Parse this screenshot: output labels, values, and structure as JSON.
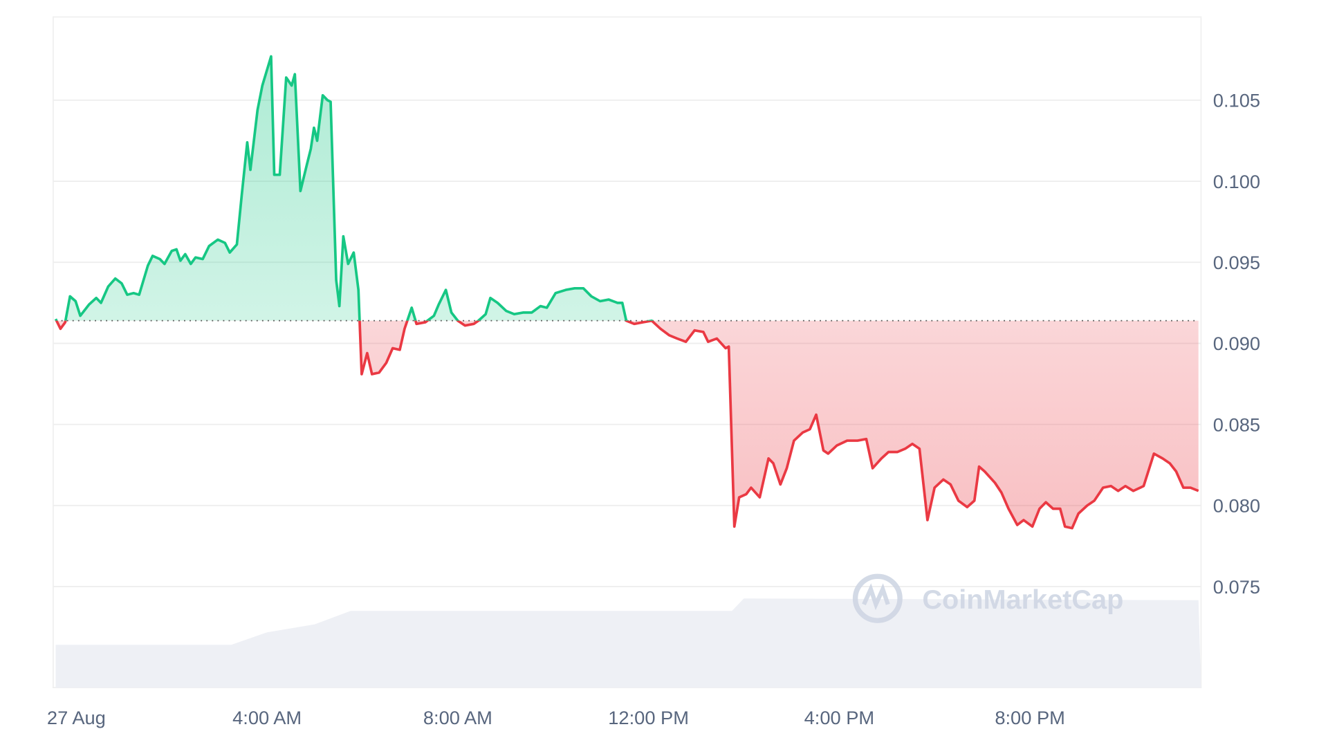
{
  "chart_data": {
    "type": "area",
    "title": "",
    "xlabel": "",
    "ylabel": "",
    "y_axis_position": "right",
    "ylim": [
      0.0687,
      0.1101
    ],
    "y_ticks": [
      "0.105",
      "0.100",
      "0.095",
      "0.090",
      "0.085",
      "0.080",
      "0.075"
    ],
    "y_tick_values": [
      0.105,
      0.1,
      0.095,
      0.09,
      0.085,
      0.08,
      0.075
    ],
    "x_ticks": [
      "27 Aug",
      "4:00 AM",
      "8:00 AM",
      "12:00 PM",
      "4:00 PM",
      "8:00 PM"
    ],
    "x_tick_times": [
      "27 Aug 00:00",
      "27 Aug 04:00",
      "27 Aug 08:00",
      "27 Aug 12:00",
      "27 Aug 16:00",
      "27 Aug 20:00"
    ],
    "grid": true,
    "reference_price": 0.0914,
    "colors": {
      "up": "#16c784",
      "down": "#ea3943",
      "volume": "#eef0f5",
      "grid": "#eeeeee"
    },
    "watermark": "CoinMarketCap",
    "series": [
      {
        "points": [
          [
            "26 Aug 23:34",
            0.0915
          ],
          [
            "26 Aug 23:40",
            0.0909
          ],
          [
            "26 Aug 23:46",
            0.0913
          ],
          [
            "26 Aug 23:52",
            0.0929
          ],
          [
            "26 Aug 23:59",
            0.0926
          ],
          [
            "27 Aug 00:05",
            0.0917
          ],
          [
            "27 Aug 00:16",
            0.0924
          ],
          [
            "27 Aug 00:25",
            0.0928
          ],
          [
            "27 Aug 00:31",
            0.0925
          ],
          [
            "27 Aug 00:40",
            0.0935
          ],
          [
            "27 Aug 00:49",
            0.094
          ],
          [
            "27 Aug 00:57",
            0.0937
          ],
          [
            "27 Aug 01:04",
            0.093
          ],
          [
            "27 Aug 01:12",
            0.0931
          ],
          [
            "27 Aug 01:19",
            0.093
          ],
          [
            "27 Aug 01:30",
            0.0948
          ],
          [
            "27 Aug 01:36",
            0.0954
          ],
          [
            "27 Aug 01:45",
            0.0952
          ],
          [
            "27 Aug 01:51",
            0.0949
          ],
          [
            "27 Aug 02:00",
            0.0957
          ],
          [
            "27 Aug 02:06",
            0.0958
          ],
          [
            "27 Aug 02:11",
            0.0951
          ],
          [
            "27 Aug 02:17",
            0.0955
          ],
          [
            "27 Aug 02:24",
            0.0949
          ],
          [
            "27 Aug 02:30",
            0.0953
          ],
          [
            "27 Aug 02:39",
            0.0952
          ],
          [
            "27 Aug 02:47",
            0.096
          ],
          [
            "27 Aug 02:58",
            0.0964
          ],
          [
            "27 Aug 03:07",
            0.0962
          ],
          [
            "27 Aug 03:13",
            0.0956
          ],
          [
            "27 Aug 03:22",
            0.0961
          ],
          [
            "27 Aug 03:28",
            0.0991
          ],
          [
            "27 Aug 03:35",
            0.1024
          ],
          [
            "27 Aug 03:39",
            0.1007
          ],
          [
            "27 Aug 03:48",
            0.1044
          ],
          [
            "27 Aug 03:54",
            0.1059
          ],
          [
            "27 Aug 04:05",
            0.1077
          ],
          [
            "27 Aug 04:09",
            0.1004
          ],
          [
            "27 Aug 04:16",
            0.1004
          ],
          [
            "27 Aug 04:24",
            0.1064
          ],
          [
            "27 Aug 04:31",
            0.1059
          ],
          [
            "27 Aug 04:35",
            0.1066
          ],
          [
            "27 Aug 04:42",
            0.0994
          ],
          [
            "27 Aug 04:50",
            0.101
          ],
          [
            "27 Aug 04:55",
            0.102
          ],
          [
            "27 Aug 04:59",
            0.1033
          ],
          [
            "27 Aug 05:03",
            0.1025
          ],
          [
            "27 Aug 05:10",
            0.1053
          ],
          [
            "27 Aug 05:16",
            0.105
          ],
          [
            "27 Aug 05:20",
            0.1049
          ],
          [
            "27 Aug 05:27",
            0.0939
          ],
          [
            "27 Aug 05:31",
            0.0923
          ],
          [
            "27 Aug 05:36",
            0.0966
          ],
          [
            "27 Aug 05:42",
            0.0949
          ],
          [
            "27 Aug 05:49",
            0.0956
          ],
          [
            "27 Aug 05:55",
            0.0933
          ],
          [
            "27 Aug 05:59",
            0.0881
          ],
          [
            "27 Aug 06:06",
            0.0894
          ],
          [
            "27 Aug 06:12",
            0.0881
          ],
          [
            "27 Aug 06:21",
            0.0882
          ],
          [
            "27 Aug 06:30",
            0.0888
          ],
          [
            "27 Aug 06:38",
            0.0897
          ],
          [
            "27 Aug 06:47",
            0.0896
          ],
          [
            "27 Aug 06:53",
            0.0909
          ],
          [
            "27 Aug 07:02",
            0.0922
          ],
          [
            "27 Aug 07:08",
            0.0912
          ],
          [
            "27 Aug 07:19",
            0.0913
          ],
          [
            "27 Aug 07:30",
            0.0917
          ],
          [
            "27 Aug 07:36",
            0.0924
          ],
          [
            "27 Aug 07:45",
            0.0933
          ],
          [
            "27 Aug 07:52",
            0.0919
          ],
          [
            "27 Aug 08:00",
            0.0914
          ],
          [
            "27 Aug 08:09",
            0.0911
          ],
          [
            "27 Aug 08:20",
            0.0912
          ],
          [
            "27 Aug 08:26",
            0.0914
          ],
          [
            "27 Aug 08:35",
            0.0918
          ],
          [
            "27 Aug 08:41",
            0.0928
          ],
          [
            "27 Aug 08:50",
            0.0925
          ],
          [
            "27 Aug 09:01",
            0.092
          ],
          [
            "27 Aug 09:11",
            0.0918
          ],
          [
            "27 Aug 09:22",
            0.0919
          ],
          [
            "27 Aug 09:33",
            0.0919
          ],
          [
            "27 Aug 09:44",
            0.0923
          ],
          [
            "27 Aug 09:52",
            0.0922
          ],
          [
            "27 Aug 10:03",
            0.0931
          ],
          [
            "27 Aug 10:16",
            0.0933
          ],
          [
            "27 Aug 10:27",
            0.0934
          ],
          [
            "27 Aug 10:38",
            0.0934
          ],
          [
            "27 Aug 10:48",
            0.0929
          ],
          [
            "27 Aug 10:59",
            0.0926
          ],
          [
            "27 Aug 11:10",
            0.0927
          ],
          [
            "27 Aug 11:21",
            0.0925
          ],
          [
            "27 Aug 11:27",
            0.0925
          ],
          [
            "27 Aug 11:32",
            0.0914
          ],
          [
            "27 Aug 11:42",
            0.0912
          ],
          [
            "27 Aug 11:53",
            0.0913
          ],
          [
            "27 Aug 12:04",
            0.0914
          ],
          [
            "27 Aug 12:15",
            0.0909
          ],
          [
            "27 Aug 12:26",
            0.0905
          ],
          [
            "27 Aug 12:36",
            0.0903
          ],
          [
            "27 Aug 12:47",
            0.0901
          ],
          [
            "27 Aug 12:58",
            0.0908
          ],
          [
            "27 Aug 13:09",
            0.0907
          ],
          [
            "27 Aug 13:15",
            0.0901
          ],
          [
            "27 Aug 13:26",
            0.0903
          ],
          [
            "27 Aug 13:37",
            0.0897
          ],
          [
            "27 Aug 13:41",
            0.0898
          ],
          [
            "27 Aug 13:48",
            0.0787
          ],
          [
            "27 Aug 13:54",
            0.0805
          ],
          [
            "27 Aug 14:03",
            0.0807
          ],
          [
            "27 Aug 14:09",
            0.0811
          ],
          [
            "27 Aug 14:20",
            0.0805
          ],
          [
            "27 Aug 14:31",
            0.0829
          ],
          [
            "27 Aug 14:37",
            0.0826
          ],
          [
            "27 Aug 14:46",
            0.0813
          ],
          [
            "27 Aug 14:54",
            0.0823
          ],
          [
            "27 Aug 15:03",
            0.084
          ],
          [
            "27 Aug 15:14",
            0.0845
          ],
          [
            "27 Aug 15:23",
            0.0847
          ],
          [
            "27 Aug 15:31",
            0.0856
          ],
          [
            "27 Aug 15:40",
            0.0834
          ],
          [
            "27 Aug 15:46",
            0.0832
          ],
          [
            "27 Aug 15:57",
            0.0837
          ],
          [
            "27 Aug 16:10",
            0.084
          ],
          [
            "27 Aug 16:23",
            0.084
          ],
          [
            "27 Aug 16:34",
            0.0841
          ],
          [
            "27 Aug 16:42",
            0.0823
          ],
          [
            "27 Aug 16:53",
            0.0829
          ],
          [
            "27 Aug 17:02",
            0.0833
          ],
          [
            "27 Aug 17:13",
            0.0833
          ],
          [
            "27 Aug 17:23",
            0.0835
          ],
          [
            "27 Aug 17:32",
            0.0838
          ],
          [
            "27 Aug 17:41",
            0.0835
          ],
          [
            "27 Aug 17:51",
            0.0791
          ],
          [
            "27 Aug 18:00",
            0.0811
          ],
          [
            "27 Aug 18:11",
            0.0816
          ],
          [
            "27 Aug 18:20",
            0.0813
          ],
          [
            "27 Aug 18:30",
            0.0803
          ],
          [
            "27 Aug 18:41",
            0.0799
          ],
          [
            "27 Aug 18:50",
            0.0803
          ],
          [
            "27 Aug 18:56",
            0.0824
          ],
          [
            "27 Aug 19:03",
            0.0821
          ],
          [
            "27 Aug 19:16",
            0.0814
          ],
          [
            "27 Aug 19:24",
            0.0808
          ],
          [
            "27 Aug 19:33",
            0.0798
          ],
          [
            "27 Aug 19:44",
            0.0788
          ],
          [
            "27 Aug 19:52",
            0.0791
          ],
          [
            "27 Aug 20:03",
            0.0787
          ],
          [
            "27 Aug 20:12",
            0.0798
          ],
          [
            "27 Aug 20:20",
            0.0802
          ],
          [
            "27 Aug 20:29",
            0.0798
          ],
          [
            "27 Aug 20:38",
            0.0798
          ],
          [
            "27 Aug 20:44",
            0.0787
          ],
          [
            "27 Aug 20:53",
            0.0786
          ],
          [
            "27 Aug 21:01",
            0.0795
          ],
          [
            "27 Aug 21:12",
            0.08
          ],
          [
            "27 Aug 21:21",
            0.0803
          ],
          [
            "27 Aug 21:32",
            0.0811
          ],
          [
            "27 Aug 21:42",
            0.0812
          ],
          [
            "27 Aug 21:51",
            0.0809
          ],
          [
            "27 Aug 22:00",
            0.0812
          ],
          [
            "27 Aug 22:10",
            0.0809
          ],
          [
            "27 Aug 22:23",
            0.0812
          ],
          [
            "27 Aug 22:36",
            0.0832
          ],
          [
            "27 Aug 22:47",
            0.0829
          ],
          [
            "27 Aug 22:56",
            0.0826
          ],
          [
            "27 Aug 23:04",
            0.0821
          ],
          [
            "27 Aug 23:13",
            0.0811
          ],
          [
            "27 Aug 23:22",
            0.0811
          ],
          [
            "27 Aug 23:32",
            0.0809
          ]
        ]
      }
    ],
    "volume_relative": [
      [
        "26 Aug 23:34",
        0.48
      ],
      [
        "27 Aug 03:15",
        0.48
      ],
      [
        "27 Aug 04:00",
        0.62
      ],
      [
        "27 Aug 05:00",
        0.71
      ],
      [
        "27 Aug 05:45",
        0.86
      ],
      [
        "27 Aug 13:45",
        0.86
      ],
      [
        "27 Aug 14:00",
        1.0
      ],
      [
        "27 Aug 23:32",
        0.98
      ]
    ]
  }
}
